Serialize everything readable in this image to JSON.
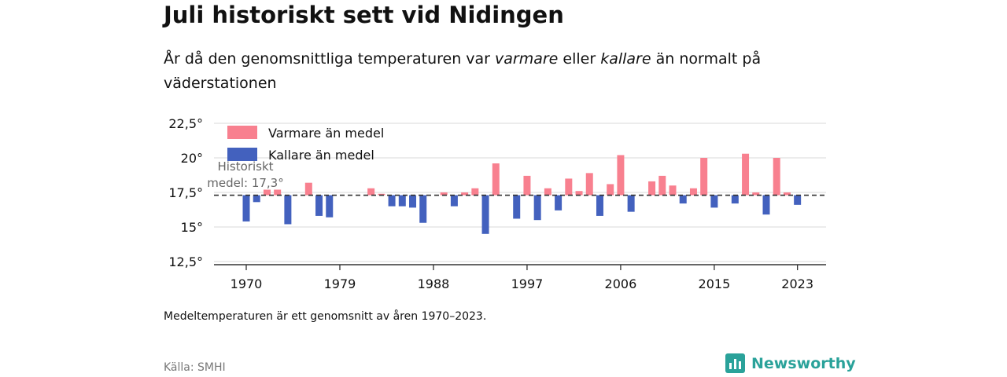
{
  "header": {
    "title": "Juli historiskt sett vid Nidingen",
    "subtitle_parts": [
      "År då den genomsnittliga temperaturen var ",
      "varmare",
      " eller ",
      "kallare",
      " än normalt på väderstationen"
    ]
  },
  "footer": {
    "note": "Medeltemperaturen är ett genomsnitt av åren 1970–2023.",
    "source": "Källa: SMHI",
    "brand": "Newsworthy"
  },
  "colors": {
    "warm": "#f8808f",
    "cold": "#4361be",
    "brand": "#2aa29a"
  },
  "chart_data": {
    "type": "bar",
    "baseline": 17.3,
    "baseline_label": [
      "Historiskt",
      "medel: 17,3°"
    ],
    "ylim": [
      12.5,
      22.5
    ],
    "yticks": [
      12.5,
      15,
      17.5,
      20,
      22.5
    ],
    "ytick_labels": [
      "12,5°",
      "15°",
      "17,5°",
      "20°",
      "22,5°"
    ],
    "xticks": [
      1970,
      1979,
      1988,
      1997,
      2006,
      2015,
      2023
    ],
    "xtick_labels": [
      "1970",
      "1979",
      "1988",
      "1997",
      "2006",
      "2015",
      "2023"
    ],
    "legend": {
      "placement": "top-left",
      "warm": "Varmare än medel",
      "cold": "Kallare än medel"
    },
    "x": [
      1970,
      1971,
      1972,
      1973,
      1974,
      1975,
      1976,
      1977,
      1978,
      1979,
      1980,
      1981,
      1982,
      1983,
      1984,
      1985,
      1986,
      1987,
      1988,
      1989,
      1990,
      1991,
      1992,
      1993,
      1994,
      1995,
      1996,
      1997,
      1998,
      1999,
      2000,
      2001,
      2002,
      2003,
      2004,
      2005,
      2006,
      2007,
      2008,
      2009,
      2010,
      2011,
      2012,
      2013,
      2014,
      2015,
      2016,
      2017,
      2018,
      2019,
      2020,
      2021,
      2022,
      2023
    ],
    "values": [
      15.4,
      16.8,
      17.7,
      17.7,
      15.2,
      17.3,
      18.2,
      15.8,
      15.7,
      17.3,
      17.3,
      17.3,
      17.8,
      17.4,
      16.5,
      16.5,
      16.4,
      15.3,
      17.3,
      17.5,
      16.5,
      17.5,
      17.8,
      14.5,
      19.6,
      17.3,
      15.6,
      18.7,
      15.5,
      17.8,
      16.2,
      18.5,
      17.6,
      18.9,
      15.8,
      18.1,
      20.2,
      16.1,
      17.3,
      18.3,
      18.7,
      18.0,
      16.7,
      17.8,
      20.0,
      16.4,
      17.3,
      16.7,
      20.3,
      17.5,
      15.9,
      20.0,
      17.5,
      16.6
    ]
  }
}
